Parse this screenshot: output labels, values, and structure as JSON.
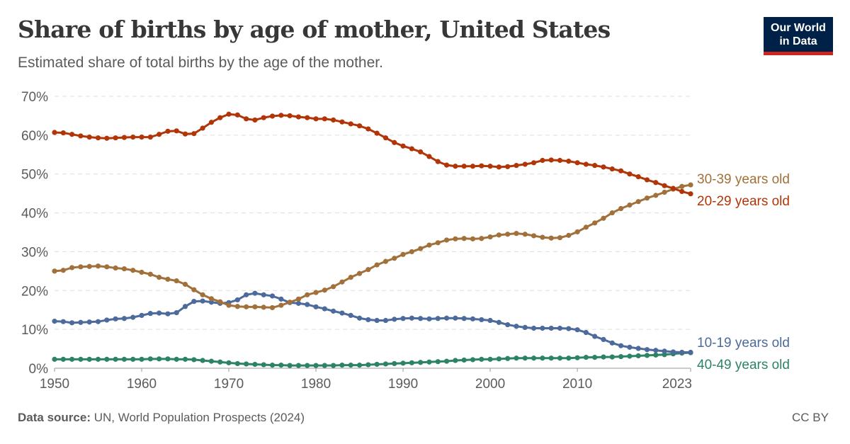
{
  "header": {
    "title": "Share of births by age of mother, United States",
    "subtitle": "Estimated share of total births by the age of the mother.",
    "logo_line1": "Our World",
    "logo_line2": "in Data"
  },
  "footer": {
    "source_label": "Data source:",
    "source_text": " UN, World Population Prospects (2024)",
    "license": "CC BY"
  },
  "chart_data": {
    "type": "line",
    "title": "Share of births by age of mother, United States",
    "xlabel": "",
    "ylabel": "",
    "xlim": [
      1950,
      2023
    ],
    "ylim": [
      0,
      70
    ],
    "yticks": [
      0,
      10,
      20,
      30,
      40,
      50,
      60,
      70
    ],
    "ytick_labels": [
      "0%",
      "10%",
      "20%",
      "30%",
      "40%",
      "50%",
      "60%",
      "70%"
    ],
    "xticks": [
      1950,
      1960,
      1970,
      1980,
      1990,
      2000,
      2010,
      2023
    ],
    "xtick_labels": [
      "1950",
      "1960",
      "1970",
      "1980",
      "1990",
      "2000",
      "2010",
      "2023"
    ],
    "grid": "horizontal-dashed",
    "legend": "right (inline end labels)",
    "x_start": 1950,
    "series": [
      {
        "name": "20-29 years old",
        "color": "#b13507",
        "values": [
          60.7,
          60.6,
          60.2,
          59.8,
          59.5,
          59.3,
          59.2,
          59.3,
          59.4,
          59.5,
          59.5,
          59.5,
          60.2,
          61.0,
          61.1,
          60.3,
          60.4,
          61.8,
          63.3,
          64.5,
          65.4,
          65.2,
          64.2,
          63.9,
          64.5,
          64.9,
          65.1,
          65.0,
          64.7,
          64.5,
          64.2,
          64.2,
          63.9,
          63.4,
          62.9,
          62.4,
          61.6,
          60.5,
          59.3,
          58.1,
          57.2,
          56.5,
          55.7,
          54.5,
          53.2,
          52.3,
          52.0,
          52.0,
          52.0,
          52.1,
          52.0,
          51.8,
          51.9,
          52.2,
          52.5,
          52.9,
          53.5,
          53.6,
          53.5,
          53.3,
          52.9,
          52.5,
          52.2,
          51.8,
          51.3,
          50.8,
          50.0,
          49.3,
          48.5,
          47.8,
          47.0,
          46.3,
          45.5,
          44.9
        ]
      },
      {
        "name": "30-39 years old",
        "color": "#a2703a",
        "values": [
          25.0,
          25.2,
          25.9,
          26.1,
          26.2,
          26.3,
          26.1,
          25.8,
          25.6,
          25.2,
          24.7,
          24.2,
          23.4,
          22.9,
          22.5,
          21.6,
          20.2,
          18.9,
          17.9,
          17.1,
          16.2,
          15.9,
          15.8,
          15.8,
          15.7,
          15.6,
          16.2,
          17.0,
          17.8,
          18.9,
          19.5,
          20.1,
          21.0,
          22.2,
          23.4,
          24.4,
          25.4,
          26.6,
          27.5,
          28.3,
          29.3,
          30.0,
          30.8,
          31.7,
          32.3,
          33.0,
          33.3,
          33.4,
          33.3,
          33.4,
          33.8,
          34.3,
          34.5,
          34.7,
          34.5,
          34.1,
          33.7,
          33.5,
          33.6,
          34.2,
          35.1,
          36.3,
          37.4,
          38.6,
          40.0,
          41.1,
          42.0,
          42.9,
          43.8,
          44.5,
          45.3,
          46.1,
          46.8,
          47.2
        ]
      },
      {
        "name": "10-19 years old",
        "color": "#4c6a9c",
        "values": [
          12.1,
          12.0,
          11.7,
          11.8,
          11.9,
          12.0,
          12.4,
          12.7,
          12.8,
          13.1,
          13.6,
          14.1,
          14.2,
          14.0,
          14.3,
          15.9,
          17.2,
          17.3,
          17.0,
          16.7,
          16.9,
          17.6,
          18.9,
          19.3,
          18.9,
          18.6,
          17.8,
          16.9,
          16.7,
          16.4,
          15.8,
          15.3,
          14.7,
          14.2,
          13.6,
          12.9,
          12.5,
          12.3,
          12.3,
          12.6,
          12.8,
          12.9,
          12.8,
          12.7,
          12.8,
          12.9,
          12.9,
          12.8,
          12.7,
          12.5,
          12.3,
          11.8,
          11.2,
          10.8,
          10.5,
          10.3,
          10.3,
          10.3,
          10.3,
          10.2,
          9.9,
          9.2,
          8.2,
          7.4,
          6.5,
          5.8,
          5.4,
          5.1,
          4.8,
          4.6,
          4.4,
          4.2,
          4.1,
          4.1
        ]
      },
      {
        "name": "40-49 years old",
        "color": "#2c8465",
        "values": [
          2.3,
          2.3,
          2.3,
          2.3,
          2.3,
          2.3,
          2.3,
          2.3,
          2.3,
          2.3,
          2.3,
          2.4,
          2.4,
          2.4,
          2.3,
          2.3,
          2.2,
          2.0,
          1.8,
          1.6,
          1.4,
          1.2,
          1.1,
          1.0,
          0.9,
          0.8,
          0.8,
          0.7,
          0.7,
          0.7,
          0.7,
          0.7,
          0.7,
          0.8,
          0.8,
          0.8,
          0.9,
          1.0,
          1.1,
          1.2,
          1.3,
          1.4,
          1.5,
          1.6,
          1.7,
          1.8,
          2.0,
          2.1,
          2.2,
          2.3,
          2.3,
          2.4,
          2.5,
          2.6,
          2.6,
          2.6,
          2.6,
          2.6,
          2.6,
          2.6,
          2.7,
          2.8,
          2.8,
          2.9,
          2.9,
          3.0,
          3.1,
          3.2,
          3.3,
          3.4,
          3.5,
          3.7,
          3.9,
          4.0
        ]
      }
    ]
  }
}
